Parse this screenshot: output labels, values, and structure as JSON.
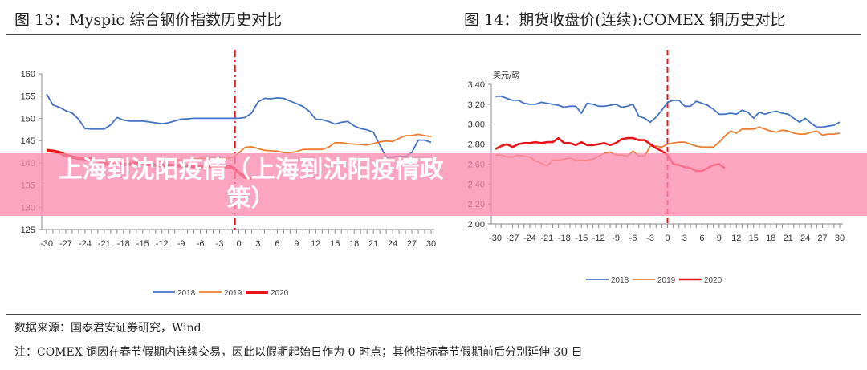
{
  "footer": {
    "source": "数据来源：国泰君安证券研究，Wind",
    "note": "注：COMEX 铜因在春节假期内连续交易，因此以假期起始日作为 0 时点；其他指标春节假期前后分别延伸 30 日"
  },
  "banner": {
    "text": "上海到沈阳疫情（上海到沈阳疫情政策）"
  },
  "colors": {
    "2018": "#4472c4",
    "2019": "#ed7d31",
    "2020": "#e8141a",
    "divider": "#e8141a"
  },
  "chart_data": [
    {
      "type": "line",
      "title": "图 13：Myspic 综合钢价指数历史对比",
      "xlabel": "",
      "ylabel": "",
      "xlim": [
        -30,
        30
      ],
      "ylim": [
        125,
        160
      ],
      "yticks": [
        "125",
        "130",
        "135",
        "140",
        "145",
        "150",
        "155",
        "160"
      ],
      "xticks": [
        "-30",
        "-27",
        "-24",
        "-21",
        "-18",
        "-15",
        "-12",
        "-9",
        "-6",
        "-3",
        "0",
        "3",
        "6",
        "9",
        "12",
        "15",
        "18",
        "21",
        "24",
        "27",
        "30"
      ],
      "divider_x": -0.6,
      "legend_position": "bottom",
      "series": [
        {
          "name": "2018",
          "x_start": -30,
          "values": [
            155.5,
            153,
            152.5,
            151.7,
            151.2,
            149.8,
            147.7,
            147.6,
            147.6,
            147.6,
            148.5,
            150.2,
            149.6,
            149.4,
            149.4,
            149.4,
            149.2,
            149,
            148.8,
            149,
            149.4,
            149.8,
            149.9,
            150,
            150,
            150,
            150,
            150,
            150,
            150,
            150,
            150.2,
            151.2,
            153.7,
            154.5,
            154.4,
            154.6,
            154.5,
            153.9,
            153.3,
            152.7,
            151.6,
            149.8,
            149.7,
            149.3,
            148.7,
            149.1,
            149.3,
            148.3,
            147.7,
            147.4,
            146.9,
            144,
            141.2,
            141.3,
            141.5,
            141.4,
            142.3,
            145.1,
            145.1,
            144.6
          ]
        },
        {
          "name": "2019",
          "x_start": -30,
          "values": [
            143,
            142.8,
            142.5,
            142,
            141.5,
            141.2,
            141,
            140.9,
            140.6,
            140.5,
            140.5,
            140.5,
            140.5,
            140.4,
            140.4,
            140.4,
            140.3,
            140.3,
            140.4,
            140.5,
            140.6,
            140.6,
            140.6,
            140.8,
            141,
            141,
            141,
            141,
            141,
            141.2,
            142.2,
            143.5,
            143.6,
            143.2,
            142.8,
            142.7,
            142.6,
            142.3,
            142.3,
            142.5,
            143,
            143,
            143,
            143,
            143.5,
            144.5,
            144.5,
            144.3,
            144.2,
            144.1,
            144,
            144.3,
            144.7,
            144.9,
            144.8,
            145.5,
            146.1,
            146.1,
            146.4,
            146.1,
            145.9
          ]
        },
        {
          "name": "2020",
          "x_start": -30,
          "values": [
            142.7,
            142.6,
            142.3,
            141.6,
            141.3,
            141,
            140.9,
            140.9,
            140.4,
            139.8,
            139.6,
            139.6,
            139.6,
            139.7,
            139.8,
            139.8,
            139.6,
            139.5,
            139.4,
            139.4,
            139.4,
            139.3,
            139.3,
            139.2,
            139.1,
            139.1,
            139.1,
            139.1,
            139.1,
            139,
            137.8,
            136.7,
            136.5
          ]
        }
      ]
    },
    {
      "type": "line",
      "title": "图 14：期货收盘价(连续):COMEX 铜历史对比",
      "unit": "美元/磅",
      "xlabel": "",
      "ylabel": "美元/磅",
      "xlim": [
        -30,
        30
      ],
      "ylim": [
        2.0,
        3.4
      ],
      "yticks": [
        "2.00",
        "2.20",
        "2.40",
        "2.60",
        "2.80",
        "3.00",
        "3.20",
        "3.40"
      ],
      "xticks": [
        "-30",
        "-27",
        "-24",
        "-21",
        "-18",
        "-15",
        "-12",
        "-9",
        "-6",
        "-3",
        "0",
        "3",
        "6",
        "9",
        "12",
        "15",
        "18",
        "21",
        "24",
        "27",
        "30"
      ],
      "divider_x": 0,
      "legend_position": "bottom",
      "series": [
        {
          "name": "2018",
          "x_start": -30,
          "values": [
            3.28,
            3.28,
            3.26,
            3.24,
            3.24,
            3.21,
            3.2,
            3.2,
            3.22,
            3.21,
            3.2,
            3.19,
            3.17,
            3.18,
            3.18,
            3.11,
            3.21,
            3.2,
            3.18,
            3.18,
            3.19,
            3.2,
            3.17,
            3.18,
            3.2,
            3.08,
            3.06,
            3.02,
            3.07,
            3.14,
            3.22,
            3.24,
            3.24,
            3.18,
            3.18,
            3.23,
            3.21,
            3.19,
            3.15,
            3.1,
            3.1,
            3.11,
            3.1,
            3.14,
            3.12,
            3.06,
            3.12,
            3.1,
            3.12,
            3.13,
            3.11,
            3.1,
            3.06,
            3.02,
            3.06,
            3.01,
            2.97,
            2.97,
            2.98,
            2.99,
            3.02
          ]
        },
        {
          "name": "2019",
          "x_start": -30,
          "values": [
            2.69,
            2.69,
            2.67,
            2.67,
            2.69,
            2.68,
            2.67,
            2.63,
            2.61,
            2.58,
            2.64,
            2.64,
            2.65,
            2.66,
            2.64,
            2.64,
            2.64,
            2.65,
            2.68,
            2.71,
            2.72,
            2.69,
            2.69,
            2.68,
            2.73,
            2.68,
            2.68,
            2.78,
            2.78,
            2.77,
            2.8,
            2.81,
            2.82,
            2.82,
            2.8,
            2.78,
            2.77,
            2.77,
            2.77,
            2.82,
            2.88,
            2.93,
            2.91,
            2.95,
            2.95,
            2.95,
            2.97,
            2.95,
            2.93,
            2.92,
            2.94,
            2.93,
            2.91,
            2.9,
            2.9,
            2.92,
            2.93,
            2.89,
            2.9,
            2.9,
            2.91
          ]
        },
        {
          "name": "2020",
          "x_start": -30,
          "values": [
            2.75,
            2.78,
            2.8,
            2.77,
            2.8,
            2.81,
            2.81,
            2.82,
            2.81,
            2.82,
            2.82,
            2.86,
            2.81,
            2.81,
            2.79,
            2.82,
            2.79,
            2.79,
            2.8,
            2.81,
            2.79,
            2.81,
            2.85,
            2.86,
            2.86,
            2.84,
            2.84,
            2.8,
            2.76,
            2.73,
            2.69,
            2.6,
            2.59,
            2.57,
            2.56,
            2.53,
            2.53,
            2.56,
            2.59,
            2.6,
            2.56
          ]
        }
      ]
    }
  ]
}
